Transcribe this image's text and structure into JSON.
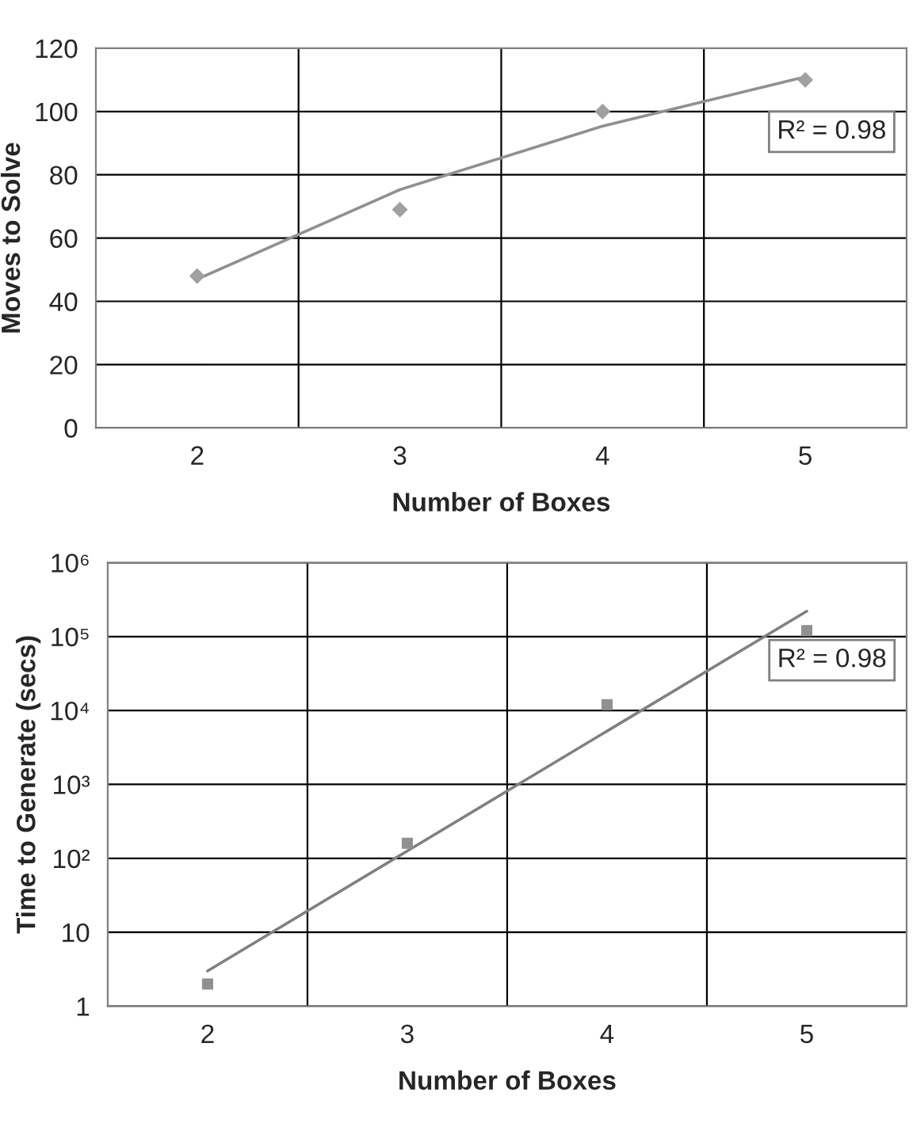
{
  "chart_data": [
    {
      "type": "scatter",
      "categories": [
        "2",
        "3",
        "4",
        "5"
      ],
      "xlabel": "Number of Boxes",
      "ylabel": "Moves to Solve",
      "ylim": [
        0,
        120
      ],
      "yticks": [
        0,
        20,
        40,
        60,
        80,
        100,
        120
      ],
      "grid": true,
      "legend": false,
      "series": [
        {
          "type": "scatter",
          "color": "#a0a0a0",
          "marker": "diamond",
          "values": [
            48,
            69,
            100,
            110
          ]
        },
        {
          "type": "line",
          "color": "#909090",
          "marker": "none",
          "line_style": "solid",
          "values": [
            47,
            75.3,
            95.4,
            111
          ]
        }
      ],
      "annotations": [
        "R² = 0.98"
      ]
    },
    {
      "type": "scatter",
      "categories": [
        "2",
        "3",
        "4",
        "5"
      ],
      "xlabel": "Number of Boxes",
      "ylabel": "Time to Generate (secs)",
      "log": "y",
      "ylim": [
        1,
        1000000
      ],
      "yticks": [
        {
          "value": 1,
          "label": "1"
        },
        {
          "value": 10,
          "label": "10"
        },
        {
          "value": 100,
          "label": "10²"
        },
        {
          "value": 1000,
          "label": "10³"
        },
        {
          "value": 10000,
          "label": "10⁴"
        },
        {
          "value": 100000,
          "label": "10⁵"
        },
        {
          "value": 1000000,
          "label": "10⁶"
        }
      ],
      "grid": true,
      "legend": false,
      "series": [
        {
          "type": "scatter",
          "color": "#909090",
          "marker": "square",
          "values": [
            2,
            160,
            12000,
            120000
          ]
        },
        {
          "type": "line",
          "color": "#808080",
          "marker": "none",
          "line_style": "solid",
          "values": [
            3,
            126,
            5270,
            220000
          ]
        }
      ],
      "annotations": [
        "R² = 0.98"
      ]
    }
  ]
}
